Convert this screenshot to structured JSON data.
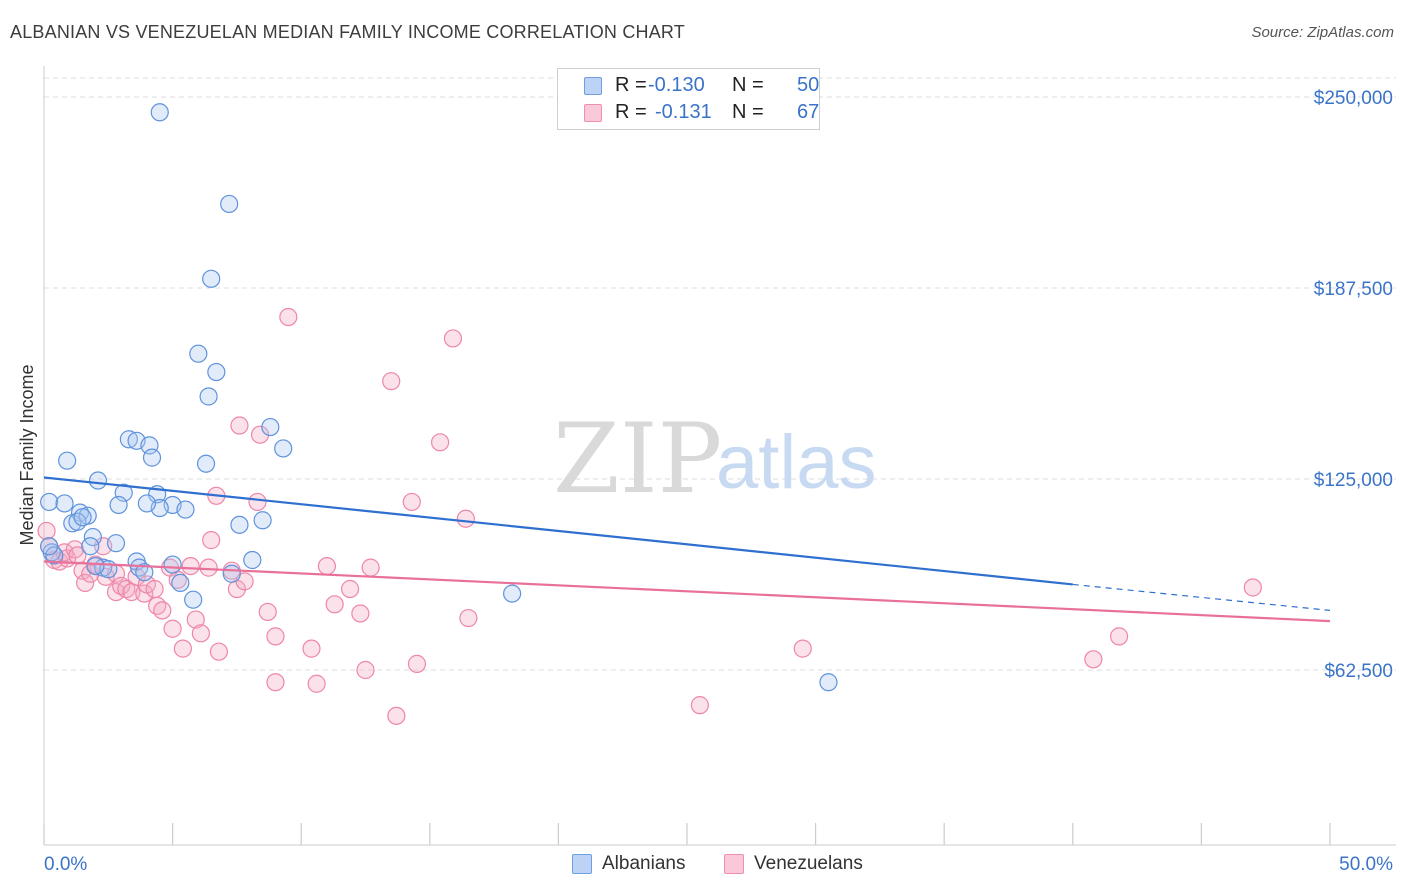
{
  "title": "ALBANIAN VS VENEZUELAN MEDIAN FAMILY INCOME CORRELATION CHART",
  "source": "Source: ZipAtlas.com",
  "watermark": {
    "zip": "ZIP",
    "atlas": "atlas"
  },
  "legend_top": [
    {
      "r_label": "R =",
      "r_value": "-0.130",
      "n_label": "N =",
      "n_value": "50"
    },
    {
      "r_label": "R =",
      "r_value": "-0.131",
      "n_label": "N =",
      "n_value": "67"
    }
  ],
  "legend_bottom": [
    "Albanians",
    "Venezuelans"
  ],
  "chart_data": {
    "type": "scatter",
    "title": "ALBANIAN VS VENEZUELAN MEDIAN FAMILY INCOME CORRELATION CHART",
    "xlabel": "",
    "ylabel": "Median Family Income",
    "xlim": [
      0,
      50
    ],
    "ylim": [
      0,
      260000
    ],
    "x_tick_labels": [
      "0.0%",
      "50.0%"
    ],
    "y_ticks": [
      62500,
      125000,
      187500,
      250000
    ],
    "y_tick_labels": [
      "$62,500",
      "$125,000",
      "$187,500",
      "$250,000"
    ],
    "grid": true,
    "legend_position": "top-center",
    "colors": {
      "Albanians": "#6f9fe0",
      "Venezuelans": "#f08fb0",
      "albanian_line": "#2f6fd0",
      "venezuelan_line": "#e8709a"
    },
    "series": [
      {
        "name": "Albanians",
        "R": -0.13,
        "N": 50,
        "trend": {
          "x": [
            0,
            40,
            50
          ],
          "y": [
            125500,
            90500,
            82000
          ]
        },
        "points": [
          [
            4.5,
            245000
          ],
          [
            7.2,
            215000
          ],
          [
            6.5,
            190500
          ],
          [
            6.0,
            166000
          ],
          [
            6.7,
            160000
          ],
          [
            6.4,
            152000
          ],
          [
            8.8,
            142000
          ],
          [
            3.3,
            138000
          ],
          [
            3.6,
            137500
          ],
          [
            4.1,
            136000
          ],
          [
            9.3,
            135000
          ],
          [
            4.2,
            132000
          ],
          [
            0.9,
            131000
          ],
          [
            6.3,
            130000
          ],
          [
            2.1,
            124500
          ],
          [
            3.1,
            120500
          ],
          [
            4.4,
            120000
          ],
          [
            0.2,
            117500
          ],
          [
            0.8,
            117000
          ],
          [
            2.9,
            116500
          ],
          [
            5.0,
            116500
          ],
          [
            4.5,
            115500
          ],
          [
            5.5,
            115000
          ],
          [
            1.4,
            114000
          ],
          [
            1.7,
            113000
          ],
          [
            1.1,
            110500
          ],
          [
            1.3,
            111000
          ],
          [
            8.5,
            111500
          ],
          [
            7.6,
            110000
          ],
          [
            1.9,
            106000
          ],
          [
            2.8,
            104000
          ],
          [
            1.8,
            103000
          ],
          [
            0.3,
            101000
          ],
          [
            0.4,
            100000
          ],
          [
            8.1,
            98500
          ],
          [
            3.6,
            98000
          ],
          [
            5.0,
            97000
          ],
          [
            3.7,
            96000
          ],
          [
            2.3,
            96000
          ],
          [
            2.5,
            95500
          ],
          [
            3.9,
            94500
          ],
          [
            7.3,
            94000
          ],
          [
            5.3,
            91000
          ],
          [
            5.8,
            85500
          ],
          [
            18.2,
            87500
          ],
          [
            30.5,
            58500
          ],
          [
            0.2,
            103000
          ],
          [
            1.5,
            112500
          ],
          [
            4.0,
            117000
          ],
          [
            2.0,
            96500
          ]
        ]
      },
      {
        "name": "Venezuelans",
        "R": -0.131,
        "N": 67,
        "trend": {
          "x": [
            0,
            50
          ],
          "y": [
            98000,
            78500
          ]
        },
        "points": [
          [
            0.1,
            108000
          ],
          [
            0.2,
            103000
          ],
          [
            0.4,
            98500
          ],
          [
            0.6,
            98000
          ],
          [
            0.8,
            101000
          ],
          [
            0.9,
            99000
          ],
          [
            1.2,
            102000
          ],
          [
            1.3,
            100000
          ],
          [
            1.5,
            95000
          ],
          [
            1.6,
            91000
          ],
          [
            1.8,
            94000
          ],
          [
            2.0,
            97000
          ],
          [
            2.3,
            103000
          ],
          [
            2.4,
            93000
          ],
          [
            2.8,
            94000
          ],
          [
            2.8,
            88000
          ],
          [
            3.0,
            90000
          ],
          [
            3.2,
            89000
          ],
          [
            3.4,
            88000
          ],
          [
            3.6,
            93000
          ],
          [
            3.9,
            87500
          ],
          [
            4.0,
            90500
          ],
          [
            4.3,
            89000
          ],
          [
            4.4,
            83500
          ],
          [
            4.6,
            82000
          ],
          [
            4.9,
            96000
          ],
          [
            5.0,
            76000
          ],
          [
            5.2,
            92000
          ],
          [
            5.4,
            69500
          ],
          [
            5.7,
            96500
          ],
          [
            5.9,
            79000
          ],
          [
            6.1,
            74500
          ],
          [
            6.5,
            105000
          ],
          [
            6.4,
            96000
          ],
          [
            6.7,
            119500
          ],
          [
            6.8,
            68500
          ],
          [
            7.3,
            95000
          ],
          [
            7.5,
            89000
          ],
          [
            7.8,
            91500
          ],
          [
            7.6,
            142500
          ],
          [
            8.3,
            117500
          ],
          [
            8.4,
            139500
          ],
          [
            8.7,
            81500
          ],
          [
            9.0,
            73500
          ],
          [
            9.0,
            58500
          ],
          [
            9.5,
            178000
          ],
          [
            10.4,
            69500
          ],
          [
            10.6,
            58000
          ],
          [
            11.0,
            96500
          ],
          [
            11.3,
            84000
          ],
          [
            11.9,
            89000
          ],
          [
            12.3,
            81000
          ],
          [
            12.5,
            62500
          ],
          [
            12.7,
            96000
          ],
          [
            13.5,
            157000
          ],
          [
            13.7,
            47500
          ],
          [
            14.3,
            117500
          ],
          [
            14.5,
            64500
          ],
          [
            15.4,
            137000
          ],
          [
            15.9,
            171000
          ],
          [
            16.4,
            112000
          ],
          [
            16.5,
            79500
          ],
          [
            25.5,
            51000
          ],
          [
            29.5,
            69500
          ],
          [
            40.8,
            66000
          ],
          [
            41.8,
            73500
          ],
          [
            47.0,
            89500
          ]
        ]
      }
    ]
  }
}
